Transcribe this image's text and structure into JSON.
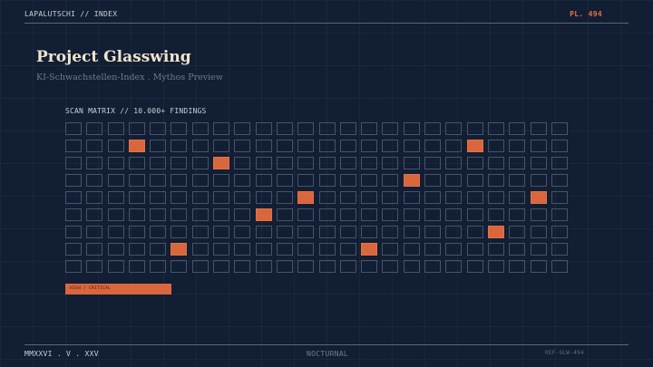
{
  "header": {
    "title": "LAPALUTSCHI // INDEX",
    "plate": "PL. 494"
  },
  "hero": {
    "title": "Project Glasswing",
    "subtitle": "KI-Schwachstellen-Index . Mythos Preview"
  },
  "matrix": {
    "title": "SCAN MATRIX // 10.000+ FINDINGS",
    "rows": 9,
    "cols": 24,
    "highlighted": [
      [
        1,
        3
      ],
      [
        1,
        19
      ],
      [
        2,
        7
      ],
      [
        3,
        16
      ],
      [
        4,
        11
      ],
      [
        4,
        22
      ],
      [
        5,
        9
      ],
      [
        6,
        20
      ],
      [
        7,
        5
      ],
      [
        7,
        14
      ]
    ],
    "highlight_color": "#d9663c",
    "cell_border_color": "#46536a"
  },
  "legend": {
    "label": "HIGH / CRITICAL"
  },
  "footer": {
    "date": "MMXXVI . V . XXV",
    "mode": "NOCTURNAL",
    "ref": "REF-GLW-494"
  },
  "colors": {
    "background": "#121e33",
    "accent": "#e0714a",
    "title": "#efe4cc"
  }
}
